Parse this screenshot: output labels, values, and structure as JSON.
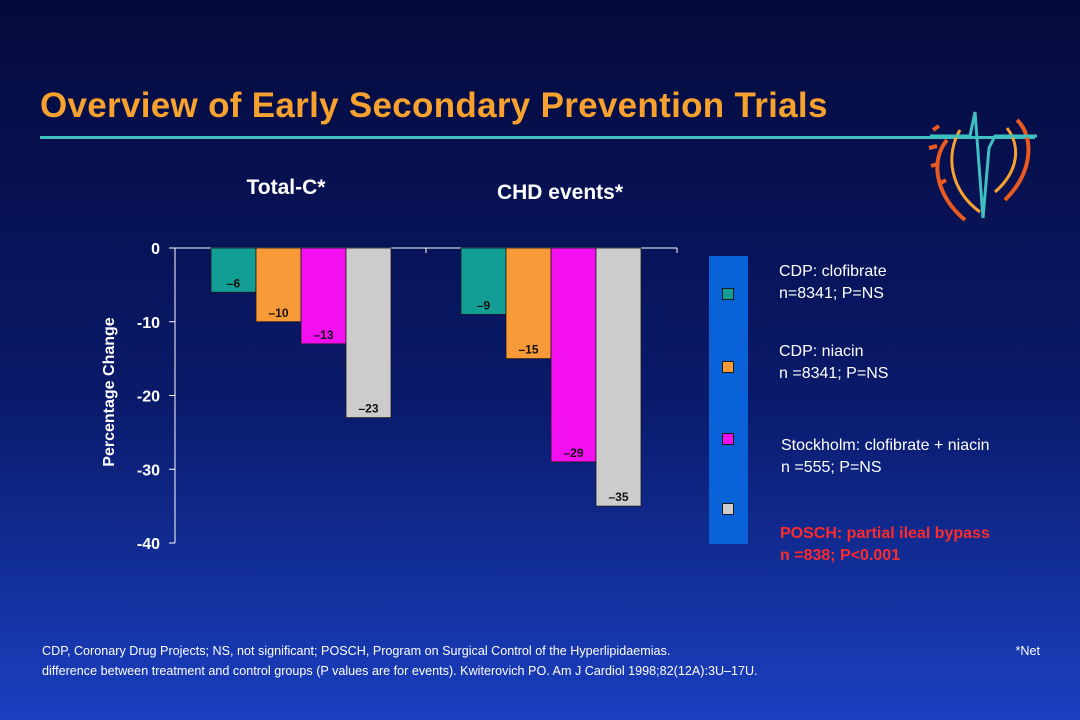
{
  "slide": {
    "title": "Overview of Early Secondary Prevention Trials",
    "colors": {
      "title": "#f7a22f",
      "rule": "#3fc0c0",
      "posch_text": "#ff2a2a"
    }
  },
  "chart_data": {
    "type": "bar",
    "categories": [
      "Total-C*",
      "CHD events*"
    ],
    "ylabel": "Percentage Change",
    "ylim": [
      -40,
      0
    ],
    "yticks": [
      "0",
      "-10",
      "-20",
      "-30",
      "-40"
    ],
    "series": [
      {
        "name": "CDP: clofibrate",
        "values": [
          -6,
          -9
        ],
        "color": "#129e94",
        "labels": [
          "–6",
          "–9"
        ]
      },
      {
        "name": "CDP: niacin",
        "values": [
          -10,
          -15
        ],
        "color": "#f99a38",
        "labels": [
          "–10",
          "–15"
        ]
      },
      {
        "name": "Stockholm: clofibrate + niacin",
        "values": [
          -13,
          -29
        ],
        "color": "#f40ff0",
        "labels": [
          "–13",
          "–29"
        ]
      },
      {
        "name": "POSCH: partial ileal bypass",
        "values": [
          -23,
          -35
        ],
        "color": "#cccccc",
        "labels": [
          "–23",
          "–35"
        ]
      }
    ],
    "legend_position": "right"
  },
  "legend": [
    {
      "line1": "CDP: clofibrate",
      "line2": "n=8341; P=NS"
    },
    {
      "line1": "CDP: niacin",
      "line2": "n =8341; P=NS"
    },
    {
      "line1": "Stockholm: clofibrate + niacin",
      "line2": "n =555; P=NS"
    },
    {
      "line1": "POSCH: partial ileal bypass",
      "line2": "n =838; P<0.001"
    }
  ],
  "footnote": {
    "line1": "CDP, Coronary Drug Projects; NS, not significant; POSCH, Program on Surgical Control of the Hyperlipidaemias.",
    "star": "*Net",
    "line2": "difference between treatment and control groups (P values are for events). Kwiterovich PO. Am J Cardiol 1998;82(12A):3U–17U."
  }
}
